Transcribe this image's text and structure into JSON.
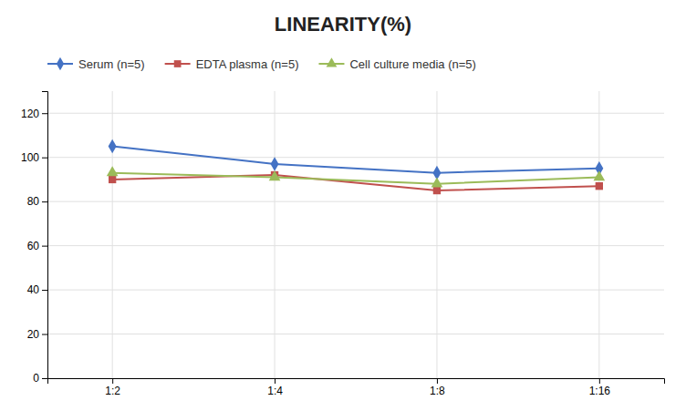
{
  "chart_data": {
    "type": "line",
    "title": "LINEARITY(%)",
    "categories": [
      "1:2",
      "1:4",
      "1:8",
      "1:16"
    ],
    "series": [
      {
        "name": "Serum (n=5)",
        "color": "#4472C4",
        "marker": "diamond",
        "values": [
          105,
          97,
          93,
          95
        ]
      },
      {
        "name": "EDTA plasma (n=5)",
        "color": "#C0504D",
        "marker": "square",
        "values": [
          90,
          92,
          85,
          87
        ]
      },
      {
        "name": "Cell culture media (n=5)",
        "color": "#9BBB59",
        "marker": "triangle",
        "values": [
          93,
          91,
          88,
          91
        ]
      }
    ],
    "ylim": [
      0,
      130
    ],
    "yticks": [
      0,
      20,
      40,
      60,
      80,
      100,
      120
    ],
    "grid": true,
    "legend": "top"
  }
}
